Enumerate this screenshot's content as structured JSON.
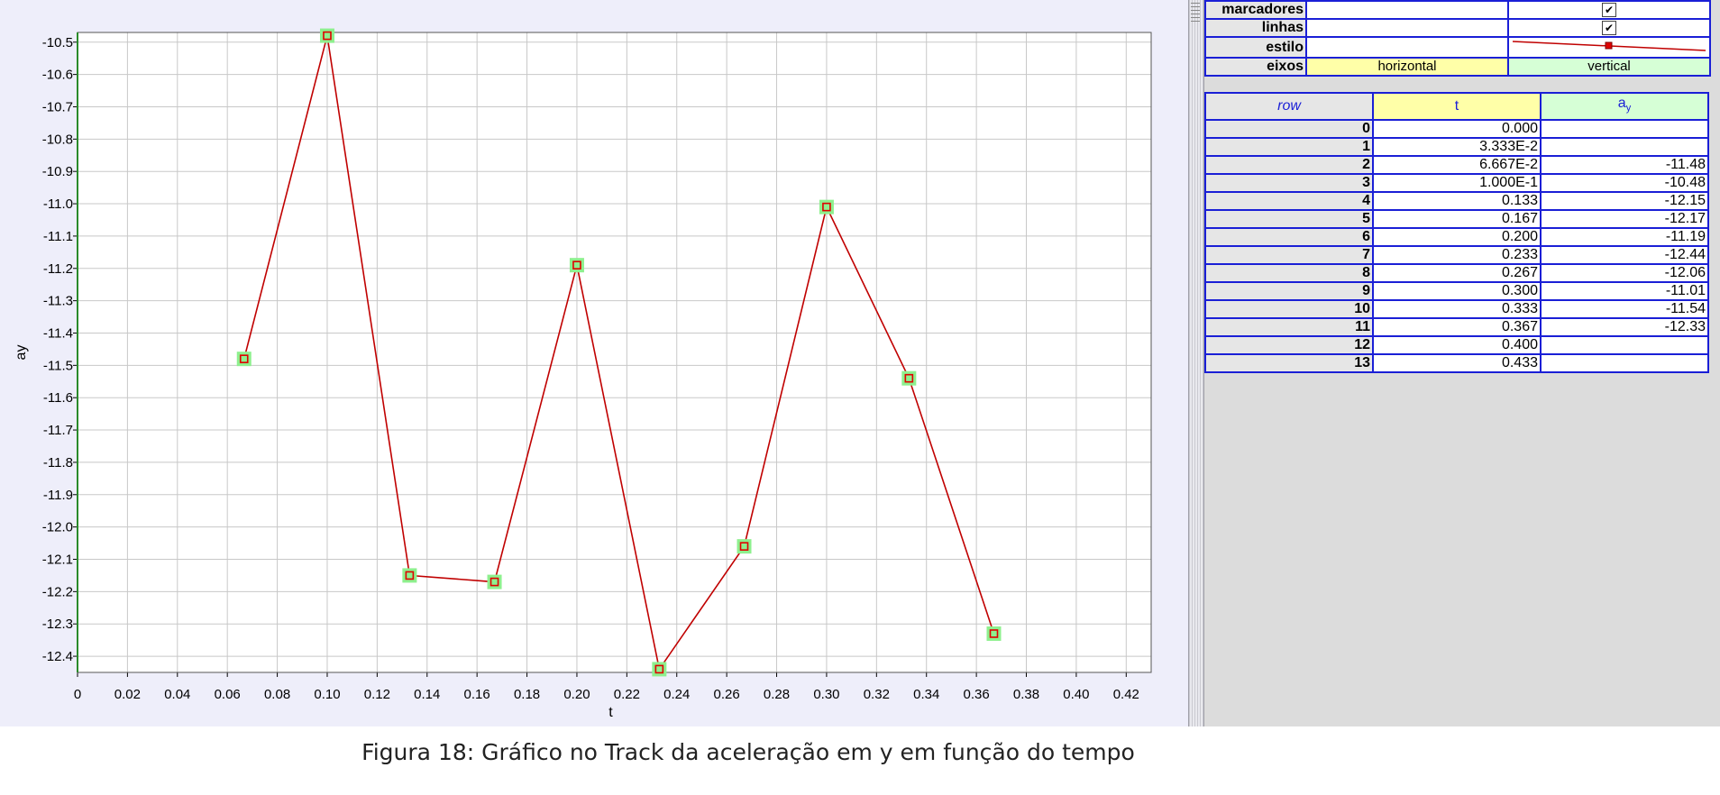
{
  "chart_data": {
    "type": "line",
    "xlabel": "t",
    "ylabel": "ay",
    "xlim": [
      0,
      0.43
    ],
    "ylim": [
      -12.45,
      -10.47
    ],
    "x_ticks": [
      "0",
      "0.02",
      "0.04",
      "0.06",
      "0.08",
      "0.10",
      "0.12",
      "0.14",
      "0.16",
      "0.18",
      "0.20",
      "0.22",
      "0.24",
      "0.26",
      "0.28",
      "0.30",
      "0.32",
      "0.34",
      "0.36",
      "0.38",
      "0.40",
      "0.42"
    ],
    "y_ticks": [
      "-10.5",
      "-10.6",
      "-10.7",
      "-10.8",
      "-10.9",
      "-11.0",
      "-11.1",
      "-11.2",
      "-11.3",
      "-11.4",
      "-11.5",
      "-11.6",
      "-11.7",
      "-11.8",
      "-11.9",
      "-12.0",
      "-12.1",
      "-12.2",
      "-12.3",
      "-12.4"
    ],
    "grid": true,
    "series": [
      {
        "x": [
          0.0667,
          0.1,
          0.133,
          0.167,
          0.2,
          0.233,
          0.267,
          0.3,
          0.333,
          0.367
        ],
        "y": [
          -11.48,
          -10.48,
          -12.15,
          -12.17,
          -11.19,
          -12.44,
          -12.06,
          -11.01,
          -11.54,
          -12.33
        ],
        "line_color": "#c00000",
        "marker_color": "#e00000",
        "highlight_color": "#8ef08e"
      }
    ]
  },
  "properties": {
    "rows": [
      {
        "label": "marcadores",
        "checked": true
      },
      {
        "label": "linhas",
        "checked": true
      },
      {
        "label": "estilo"
      },
      {
        "label": "eixos",
        "horizontal": "horizontal",
        "vertical": "vertical"
      }
    ],
    "check_glyph": "✔"
  },
  "table": {
    "headers": {
      "row": "row",
      "t": "t",
      "ay_main": "a",
      "ay_sub": "y"
    },
    "rows": [
      {
        "row": "0",
        "t": "0.000",
        "ay": ""
      },
      {
        "row": "1",
        "t": "3.333E-2",
        "ay": ""
      },
      {
        "row": "2",
        "t": "6.667E-2",
        "ay": "-11.48"
      },
      {
        "row": "3",
        "t": "1.000E-1",
        "ay": "-10.48"
      },
      {
        "row": "4",
        "t": "0.133",
        "ay": "-12.15"
      },
      {
        "row": "5",
        "t": "0.167",
        "ay": "-12.17"
      },
      {
        "row": "6",
        "t": "0.200",
        "ay": "-11.19"
      },
      {
        "row": "7",
        "t": "0.233",
        "ay": "-12.44"
      },
      {
        "row": "8",
        "t": "0.267",
        "ay": "-12.06"
      },
      {
        "row": "9",
        "t": "0.300",
        "ay": "-11.01"
      },
      {
        "row": "10",
        "t": "0.333",
        "ay": "-11.54"
      },
      {
        "row": "11",
        "t": "0.367",
        "ay": "-12.33"
      },
      {
        "row": "12",
        "t": "0.400",
        "ay": ""
      },
      {
        "row": "13",
        "t": "0.433",
        "ay": ""
      }
    ]
  },
  "caption": "Figura 18: Gráfico no Track da aceleração em y em função do tempo"
}
